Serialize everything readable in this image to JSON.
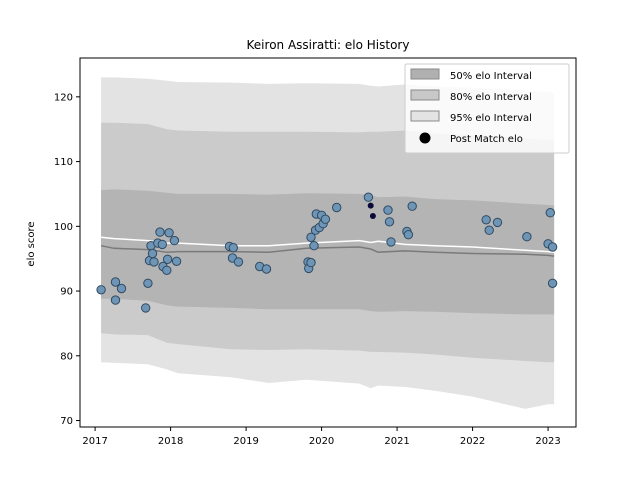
{
  "chart_data": {
    "type": "scatter",
    "title": "Keiron Assiratti: elo History",
    "xlabel": "",
    "ylabel": "elo score",
    "xlim": [
      2016.8,
      2023.37
    ],
    "ylim": [
      69,
      126
    ],
    "xticks": [
      2017,
      2018,
      2019,
      2020,
      2021,
      2022,
      2023
    ],
    "yticks": [
      70,
      80,
      90,
      100,
      110,
      120
    ],
    "grid": false,
    "legend_position": "top-right",
    "legend": [
      {
        "label": "50% elo Interval",
        "kind": "patch",
        "color": "#b0b0b0"
      },
      {
        "label": "80% elo Interval",
        "kind": "patch",
        "color": "#c8c8c8"
      },
      {
        "label": "95% elo Interval",
        "kind": "patch",
        "color": "#e3e3e3"
      },
      {
        "label": "Post Match elo",
        "kind": "marker",
        "color": "#000000"
      }
    ],
    "colors": {
      "band95": "#e3e3e3",
      "band80": "#cbcbcb",
      "band50": "#b4b4b4",
      "median_line": "#7a7a7a",
      "mean_line": "#ffffff",
      "point_fill": "#6f95b6",
      "point_edge": "#2f4a62",
      "post_match": "#0a0a3a"
    },
    "band_x": [
      2017.08,
      2017.25,
      2017.7,
      2017.95,
      2018.1,
      2018.8,
      2019.3,
      2019.8,
      2020.5,
      2020.65,
      2020.75,
      2021.1,
      2021.5,
      2022.0,
      2022.7,
      2023.0,
      2023.08
    ],
    "band95_upper": [
      123,
      123,
      122.8,
      122.5,
      122.3,
      122.2,
      122.0,
      122.1,
      122.0,
      121.7,
      121.6,
      121.9,
      121.6,
      121.4,
      121.0,
      120.7,
      120.6
    ],
    "band95_lower": [
      79,
      78.9,
      78.7,
      77.9,
      77.3,
      76.7,
      75.8,
      76.3,
      75.7,
      75.0,
      75.4,
      75.2,
      74.6,
      73.7,
      71.8,
      72.5,
      72.5
    ],
    "band80_upper": [
      116,
      116,
      115.8,
      115.0,
      114.8,
      114.6,
      114.6,
      114.6,
      114.5,
      114.6,
      114.6,
      114.8,
      114.3,
      114.1,
      113.6,
      113.3,
      113.3
    ],
    "band80_lower": [
      83.5,
      83.3,
      83.2,
      82.0,
      81.8,
      81.0,
      80.9,
      81.0,
      80.8,
      80.6,
      80.6,
      80.5,
      80.2,
      79.7,
      79.2,
      79.0,
      79.0
    ],
    "band50_upper": [
      105.6,
      105.7,
      105.5,
      105.2,
      105.0,
      105.0,
      104.9,
      105.1,
      105.0,
      104.8,
      104.5,
      104.6,
      104.2,
      104.0,
      103.5,
      103.3,
      103.2
    ],
    "band50_lower": [
      88.8,
      88.8,
      88.5,
      87.8,
      87.6,
      87.4,
      87.2,
      87.2,
      87.2,
      86.9,
      86.8,
      86.9,
      86.8,
      86.6,
      86.4,
      86.4,
      86.4
    ],
    "median": [
      97.0,
      96.6,
      96.4,
      96.0,
      96.1,
      96.1,
      96.0,
      96.6,
      96.8,
      96.5,
      96.0,
      96.2,
      96.0,
      95.8,
      95.7,
      95.5,
      95.4
    ],
    "mean": [
      98.3,
      98.1,
      97.8,
      97.4,
      97.4,
      97.0,
      97.0,
      97.4,
      97.8,
      97.5,
      97.7,
      97.2,
      97.0,
      96.8,
      96.3,
      96.1,
      96.0
    ],
    "points": [
      {
        "x": 2017.08,
        "y": 90.2
      },
      {
        "x": 2017.27,
        "y": 91.4
      },
      {
        "x": 2017.27,
        "y": 88.6
      },
      {
        "x": 2017.35,
        "y": 90.4
      },
      {
        "x": 2017.67,
        "y": 87.4
      },
      {
        "x": 2017.7,
        "y": 91.2
      },
      {
        "x": 2017.72,
        "y": 94.7
      },
      {
        "x": 2017.74,
        "y": 97.0
      },
      {
        "x": 2017.76,
        "y": 95.8
      },
      {
        "x": 2017.78,
        "y": 94.5
      },
      {
        "x": 2017.83,
        "y": 97.4
      },
      {
        "x": 2017.86,
        "y": 99.1
      },
      {
        "x": 2017.89,
        "y": 97.2
      },
      {
        "x": 2017.9,
        "y": 93.8
      },
      {
        "x": 2017.95,
        "y": 93.2
      },
      {
        "x": 2017.96,
        "y": 94.9
      },
      {
        "x": 2017.98,
        "y": 99.0
      },
      {
        "x": 2018.05,
        "y": 97.8
      },
      {
        "x": 2018.08,
        "y": 94.6
      },
      {
        "x": 2018.78,
        "y": 96.9
      },
      {
        "x": 2018.83,
        "y": 96.7
      },
      {
        "x": 2018.82,
        "y": 95.1
      },
      {
        "x": 2018.9,
        "y": 94.5
      },
      {
        "x": 2019.18,
        "y": 93.8
      },
      {
        "x": 2019.27,
        "y": 93.4
      },
      {
        "x": 2019.82,
        "y": 94.5
      },
      {
        "x": 2019.83,
        "y": 93.5
      },
      {
        "x": 2019.86,
        "y": 94.4
      },
      {
        "x": 2019.86,
        "y": 98.3
      },
      {
        "x": 2019.9,
        "y": 97.0
      },
      {
        "x": 2019.92,
        "y": 99.4
      },
      {
        "x": 2019.93,
        "y": 101.9
      },
      {
        "x": 2019.97,
        "y": 99.8
      },
      {
        "x": 2020.0,
        "y": 101.7
      },
      {
        "x": 2020.02,
        "y": 100.4
      },
      {
        "x": 2020.05,
        "y": 101.1
      },
      {
        "x": 2020.2,
        "y": 102.9
      },
      {
        "x": 2020.62,
        "y": 104.5
      },
      {
        "x": 2020.88,
        "y": 102.5
      },
      {
        "x": 2020.9,
        "y": 100.7
      },
      {
        "x": 2020.92,
        "y": 97.6
      },
      {
        "x": 2021.13,
        "y": 99.2
      },
      {
        "x": 2021.15,
        "y": 98.7
      },
      {
        "x": 2021.2,
        "y": 103.1
      },
      {
        "x": 2022.18,
        "y": 101.0
      },
      {
        "x": 2022.22,
        "y": 99.4
      },
      {
        "x": 2022.33,
        "y": 100.6
      },
      {
        "x": 2022.72,
        "y": 98.4
      },
      {
        "x": 2023.0,
        "y": 97.3
      },
      {
        "x": 2023.03,
        "y": 102.1
      },
      {
        "x": 2023.06,
        "y": 96.8
      },
      {
        "x": 2023.06,
        "y": 91.2
      }
    ],
    "post_match_points": [
      {
        "x": 2020.65,
        "y": 103.2
      },
      {
        "x": 2020.68,
        "y": 101.6
      }
    ]
  }
}
